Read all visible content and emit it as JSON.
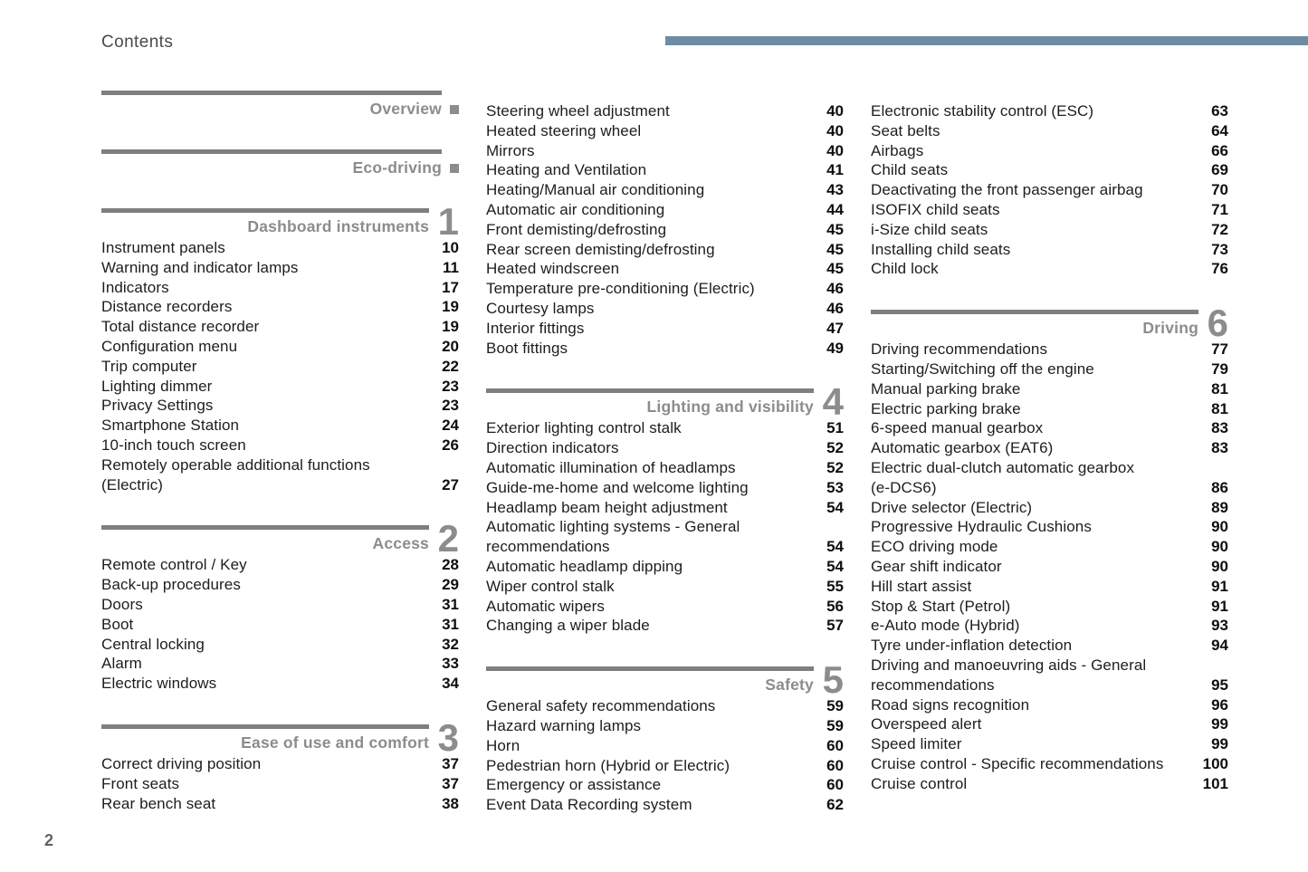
{
  "page": {
    "header_title": "Contents",
    "footer_page_number": "2",
    "accent_bar_color": "#6d8ba3",
    "rule_color": "#7f7f7f",
    "section_gray": "#8c8c8c"
  },
  "columns": [
    {
      "blocks": [
        {
          "type": "section",
          "title": "Overview",
          "marker": "square",
          "items": []
        },
        {
          "type": "section",
          "title": "Eco-driving",
          "marker": "square",
          "items": []
        },
        {
          "type": "section",
          "title": "Dashboard instruments",
          "number": "1",
          "items": [
            {
              "lines": [
                "Instrument panels"
              ],
              "page": "10"
            },
            {
              "lines": [
                "Warning and indicator lamps"
              ],
              "page": "11"
            },
            {
              "lines": [
                "Indicators"
              ],
              "page": "17"
            },
            {
              "lines": [
                "Distance recorders"
              ],
              "page": "19"
            },
            {
              "lines": [
                "Total distance recorder"
              ],
              "page": "19"
            },
            {
              "lines": [
                "Configuration menu"
              ],
              "page": "20"
            },
            {
              "lines": [
                "Trip computer"
              ],
              "page": "22"
            },
            {
              "lines": [
                "Lighting dimmer"
              ],
              "page": "23"
            },
            {
              "lines": [
                "Privacy Settings"
              ],
              "page": "23"
            },
            {
              "lines": [
                "Smartphone Station"
              ],
              "page": "24"
            },
            {
              "lines": [
                "10-inch touch screen"
              ],
              "page": "26"
            },
            {
              "lines": [
                "Remotely operable additional functions",
                "(Electric)"
              ],
              "page": "27"
            }
          ]
        },
        {
          "type": "section",
          "title": "Access",
          "number": "2",
          "items": [
            {
              "lines": [
                "Remote control / Key"
              ],
              "page": "28"
            },
            {
              "lines": [
                "Back-up procedures"
              ],
              "page": "29"
            },
            {
              "lines": [
                "Doors"
              ],
              "page": "31"
            },
            {
              "lines": [
                "Boot"
              ],
              "page": "31"
            },
            {
              "lines": [
                "Central locking"
              ],
              "page": "32"
            },
            {
              "lines": [
                "Alarm"
              ],
              "page": "33"
            },
            {
              "lines": [
                "Electric windows"
              ],
              "page": "34"
            }
          ]
        },
        {
          "type": "section",
          "title": "Ease of use and comfort",
          "number": "3",
          "items": [
            {
              "lines": [
                "Correct driving position"
              ],
              "page": "37"
            },
            {
              "lines": [
                "Front seats"
              ],
              "page": "37"
            },
            {
              "lines": [
                "Rear bench seat"
              ],
              "page": "38"
            }
          ]
        }
      ]
    },
    {
      "blocks": [
        {
          "type": "items",
          "items": [
            {
              "lines": [
                "Steering wheel adjustment"
              ],
              "page": "40"
            },
            {
              "lines": [
                "Heated steering wheel"
              ],
              "page": "40"
            },
            {
              "lines": [
                "Mirrors"
              ],
              "page": "40"
            },
            {
              "lines": [
                "Heating and Ventilation"
              ],
              "page": "41"
            },
            {
              "lines": [
                "Heating/Manual air conditioning"
              ],
              "page": "43"
            },
            {
              "lines": [
                "Automatic air conditioning"
              ],
              "page": "44"
            },
            {
              "lines": [
                "Front demisting/defrosting"
              ],
              "page": "45"
            },
            {
              "lines": [
                "Rear screen demisting/defrosting"
              ],
              "page": "45"
            },
            {
              "lines": [
                "Heated windscreen"
              ],
              "page": "45"
            },
            {
              "lines": [
                "Temperature pre-conditioning (Electric)"
              ],
              "page": "46"
            },
            {
              "lines": [
                "Courtesy lamps"
              ],
              "page": "46"
            },
            {
              "lines": [
                "Interior fittings"
              ],
              "page": "47"
            },
            {
              "lines": [
                "Boot fittings"
              ],
              "page": "49"
            }
          ]
        },
        {
          "type": "section",
          "title": "Lighting and visibility",
          "number": "4",
          "items": [
            {
              "lines": [
                "Exterior lighting control stalk"
              ],
              "page": "51"
            },
            {
              "lines": [
                "Direction indicators"
              ],
              "page": "52"
            },
            {
              "lines": [
                "Automatic illumination of headlamps"
              ],
              "page": "52"
            },
            {
              "lines": [
                "Guide-me-home and welcome lighting"
              ],
              "page": "53"
            },
            {
              "lines": [
                "Headlamp beam height adjustment"
              ],
              "page": "54"
            },
            {
              "lines": [
                "Automatic lighting systems - General",
                "recommendations"
              ],
              "page": "54"
            },
            {
              "lines": [
                "Automatic headlamp dipping"
              ],
              "page": "54"
            },
            {
              "lines": [
                "Wiper control stalk"
              ],
              "page": "55"
            },
            {
              "lines": [
                "Automatic wipers"
              ],
              "page": "56"
            },
            {
              "lines": [
                "Changing a wiper blade"
              ],
              "page": "57"
            }
          ]
        },
        {
          "type": "section",
          "title": "Safety",
          "number": "5",
          "items": [
            {
              "lines": [
                "General safety recommendations"
              ],
              "page": "59"
            },
            {
              "lines": [
                "Hazard warning lamps"
              ],
              "page": "59"
            },
            {
              "lines": [
                "Horn"
              ],
              "page": "60"
            },
            {
              "lines": [
                "Pedestrian horn (Hybrid or Electric)"
              ],
              "page": "60"
            },
            {
              "lines": [
                "Emergency or assistance"
              ],
              "page": "60"
            },
            {
              "lines": [
                "Event Data Recording system"
              ],
              "page": "62"
            }
          ]
        }
      ]
    },
    {
      "blocks": [
        {
          "type": "items",
          "items": [
            {
              "lines": [
                "Electronic stability control (ESC)"
              ],
              "page": "63"
            },
            {
              "lines": [
                "Seat belts"
              ],
              "page": "64"
            },
            {
              "lines": [
                "Airbags"
              ],
              "page": "66"
            },
            {
              "lines": [
                "Child seats"
              ],
              "page": "69"
            },
            {
              "lines": [
                "Deactivating the front passenger airbag"
              ],
              "page": "70"
            },
            {
              "lines": [
                "ISOFIX child seats"
              ],
              "page": "71"
            },
            {
              "lines": [
                "i-Size child seats"
              ],
              "page": "72"
            },
            {
              "lines": [
                "Installing child seats"
              ],
              "page": "73"
            },
            {
              "lines": [
                "Child lock"
              ],
              "page": "76"
            }
          ]
        },
        {
          "type": "section",
          "title": "Driving",
          "number": "6",
          "items": [
            {
              "lines": [
                "Driving recommendations"
              ],
              "page": "77"
            },
            {
              "lines": [
                "Starting/Switching off the engine"
              ],
              "page": "79"
            },
            {
              "lines": [
                "Manual parking brake"
              ],
              "page": "81"
            },
            {
              "lines": [
                "Electric parking brake"
              ],
              "page": "81"
            },
            {
              "lines": [
                "6-speed manual gearbox"
              ],
              "page": "83"
            },
            {
              "lines": [
                "Automatic gearbox (EAT6)"
              ],
              "page": "83"
            },
            {
              "lines": [
                "Electric dual-clutch automatic gearbox",
                "(e-DCS6)"
              ],
              "page": "86"
            },
            {
              "lines": [
                "Drive selector (Electric)"
              ],
              "page": "89"
            },
            {
              "lines": [
                "Progressive Hydraulic Cushions"
              ],
              "page": "90"
            },
            {
              "lines": [
                "ECO driving mode"
              ],
              "page": "90"
            },
            {
              "lines": [
                "Gear shift indicator"
              ],
              "page": "90"
            },
            {
              "lines": [
                "Hill start assist"
              ],
              "page": "91"
            },
            {
              "lines": [
                "Stop & Start (Petrol)"
              ],
              "page": "91"
            },
            {
              "lines": [
                "e-Auto mode (Hybrid)"
              ],
              "page": "93"
            },
            {
              "lines": [
                "Tyre under-inflation detection"
              ],
              "page": "94"
            },
            {
              "lines": [
                "Driving and manoeuvring aids - General",
                "recommendations"
              ],
              "page": "95"
            },
            {
              "lines": [
                "Road signs recognition"
              ],
              "page": "96"
            },
            {
              "lines": [
                "Overspeed alert"
              ],
              "page": "99"
            },
            {
              "lines": [
                "Speed limiter"
              ],
              "page": "99"
            },
            {
              "lines": [
                "Cruise control - Specific recommendations"
              ],
              "page": "100"
            },
            {
              "lines": [
                "Cruise control"
              ],
              "page": "101"
            }
          ]
        }
      ]
    }
  ]
}
